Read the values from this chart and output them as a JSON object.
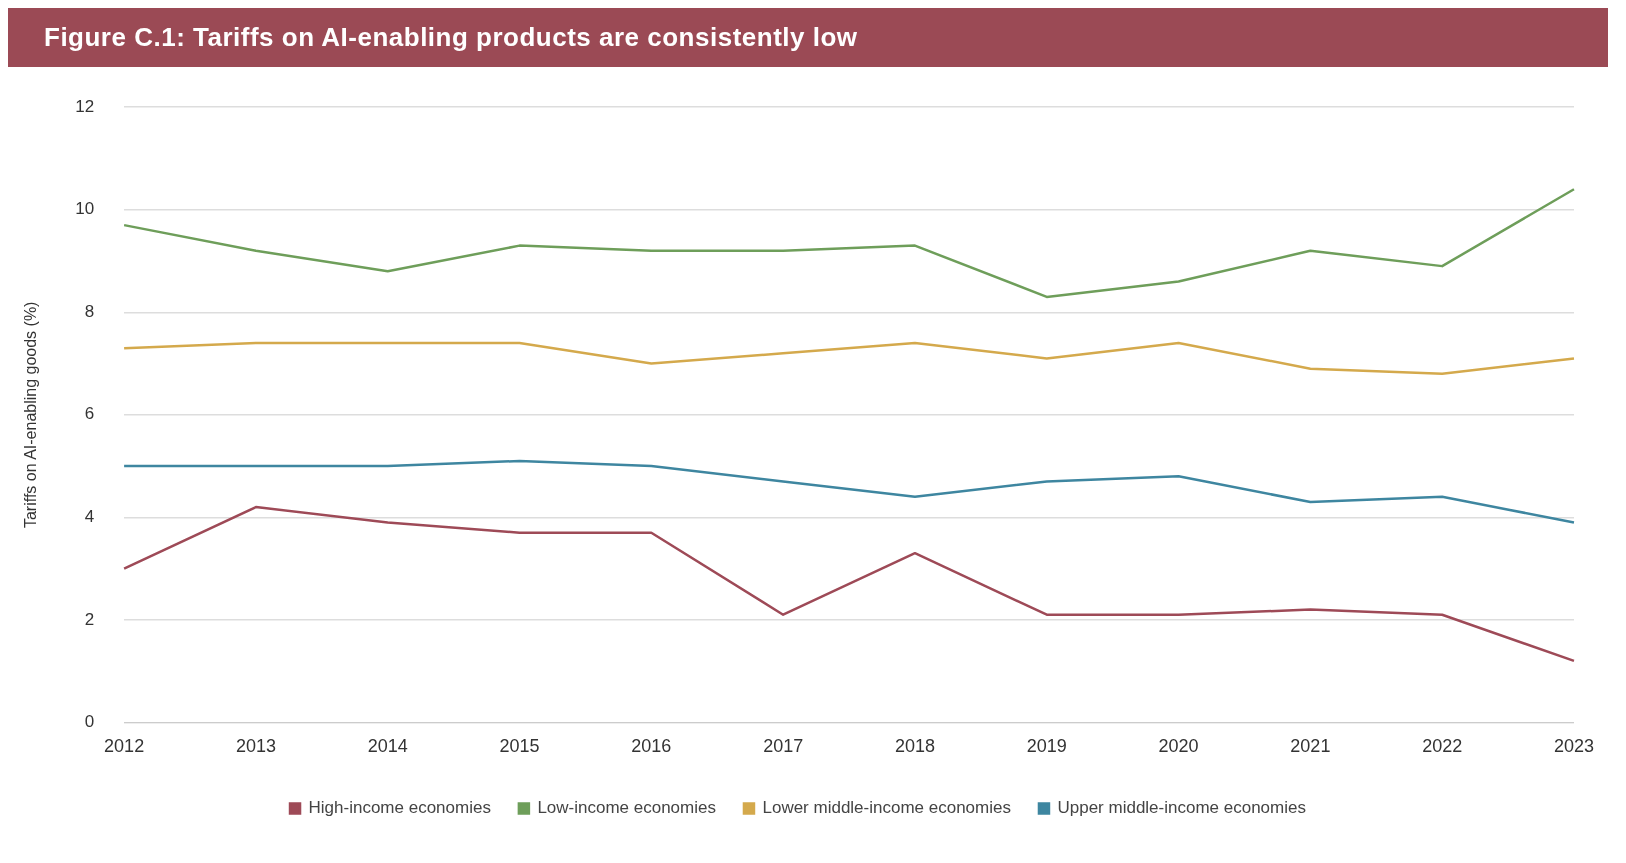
{
  "chart_data": {
    "type": "line",
    "title": "Figure C.1: Tariffs on AI-enabling products are consistently low",
    "ylabel": "Tariffs on AI-enabling goods (%)",
    "categories": [
      "2012",
      "2013",
      "2014",
      "2015",
      "2016",
      "2017",
      "2018",
      "2019",
      "2020",
      "2021",
      "2022",
      "2023"
    ],
    "series": [
      {
        "name": "High-income economies",
        "color": "#9e4a57",
        "values": [
          3.0,
          4.2,
          3.9,
          3.7,
          3.7,
          2.1,
          3.3,
          2.1,
          2.1,
          2.2,
          2.1,
          1.2
        ]
      },
      {
        "name": "Low-income economies",
        "color": "#6e9e5a",
        "values": [
          9.7,
          9.2,
          8.8,
          9.3,
          9.2,
          9.2,
          9.3,
          8.3,
          8.6,
          9.2,
          8.9,
          10.4
        ]
      },
      {
        "name": "Lower middle-income economies",
        "color": "#d4a94c",
        "values": [
          7.3,
          7.4,
          7.4,
          7.4,
          7.0,
          7.2,
          7.4,
          7.1,
          7.4,
          6.9,
          6.8,
          7.1
        ]
      },
      {
        "name": "Upper middle-income economies",
        "color": "#3e86a0",
        "values": [
          5.0,
          5.0,
          5.0,
          5.1,
          5.0,
          4.7,
          4.4,
          4.7,
          4.8,
          4.3,
          4.4,
          3.9
        ]
      }
    ],
    "ylim": [
      0,
      12
    ],
    "yticks": [
      0,
      2,
      4,
      6,
      8,
      10,
      12
    ],
    "grid": "y",
    "legend": "bottom"
  }
}
